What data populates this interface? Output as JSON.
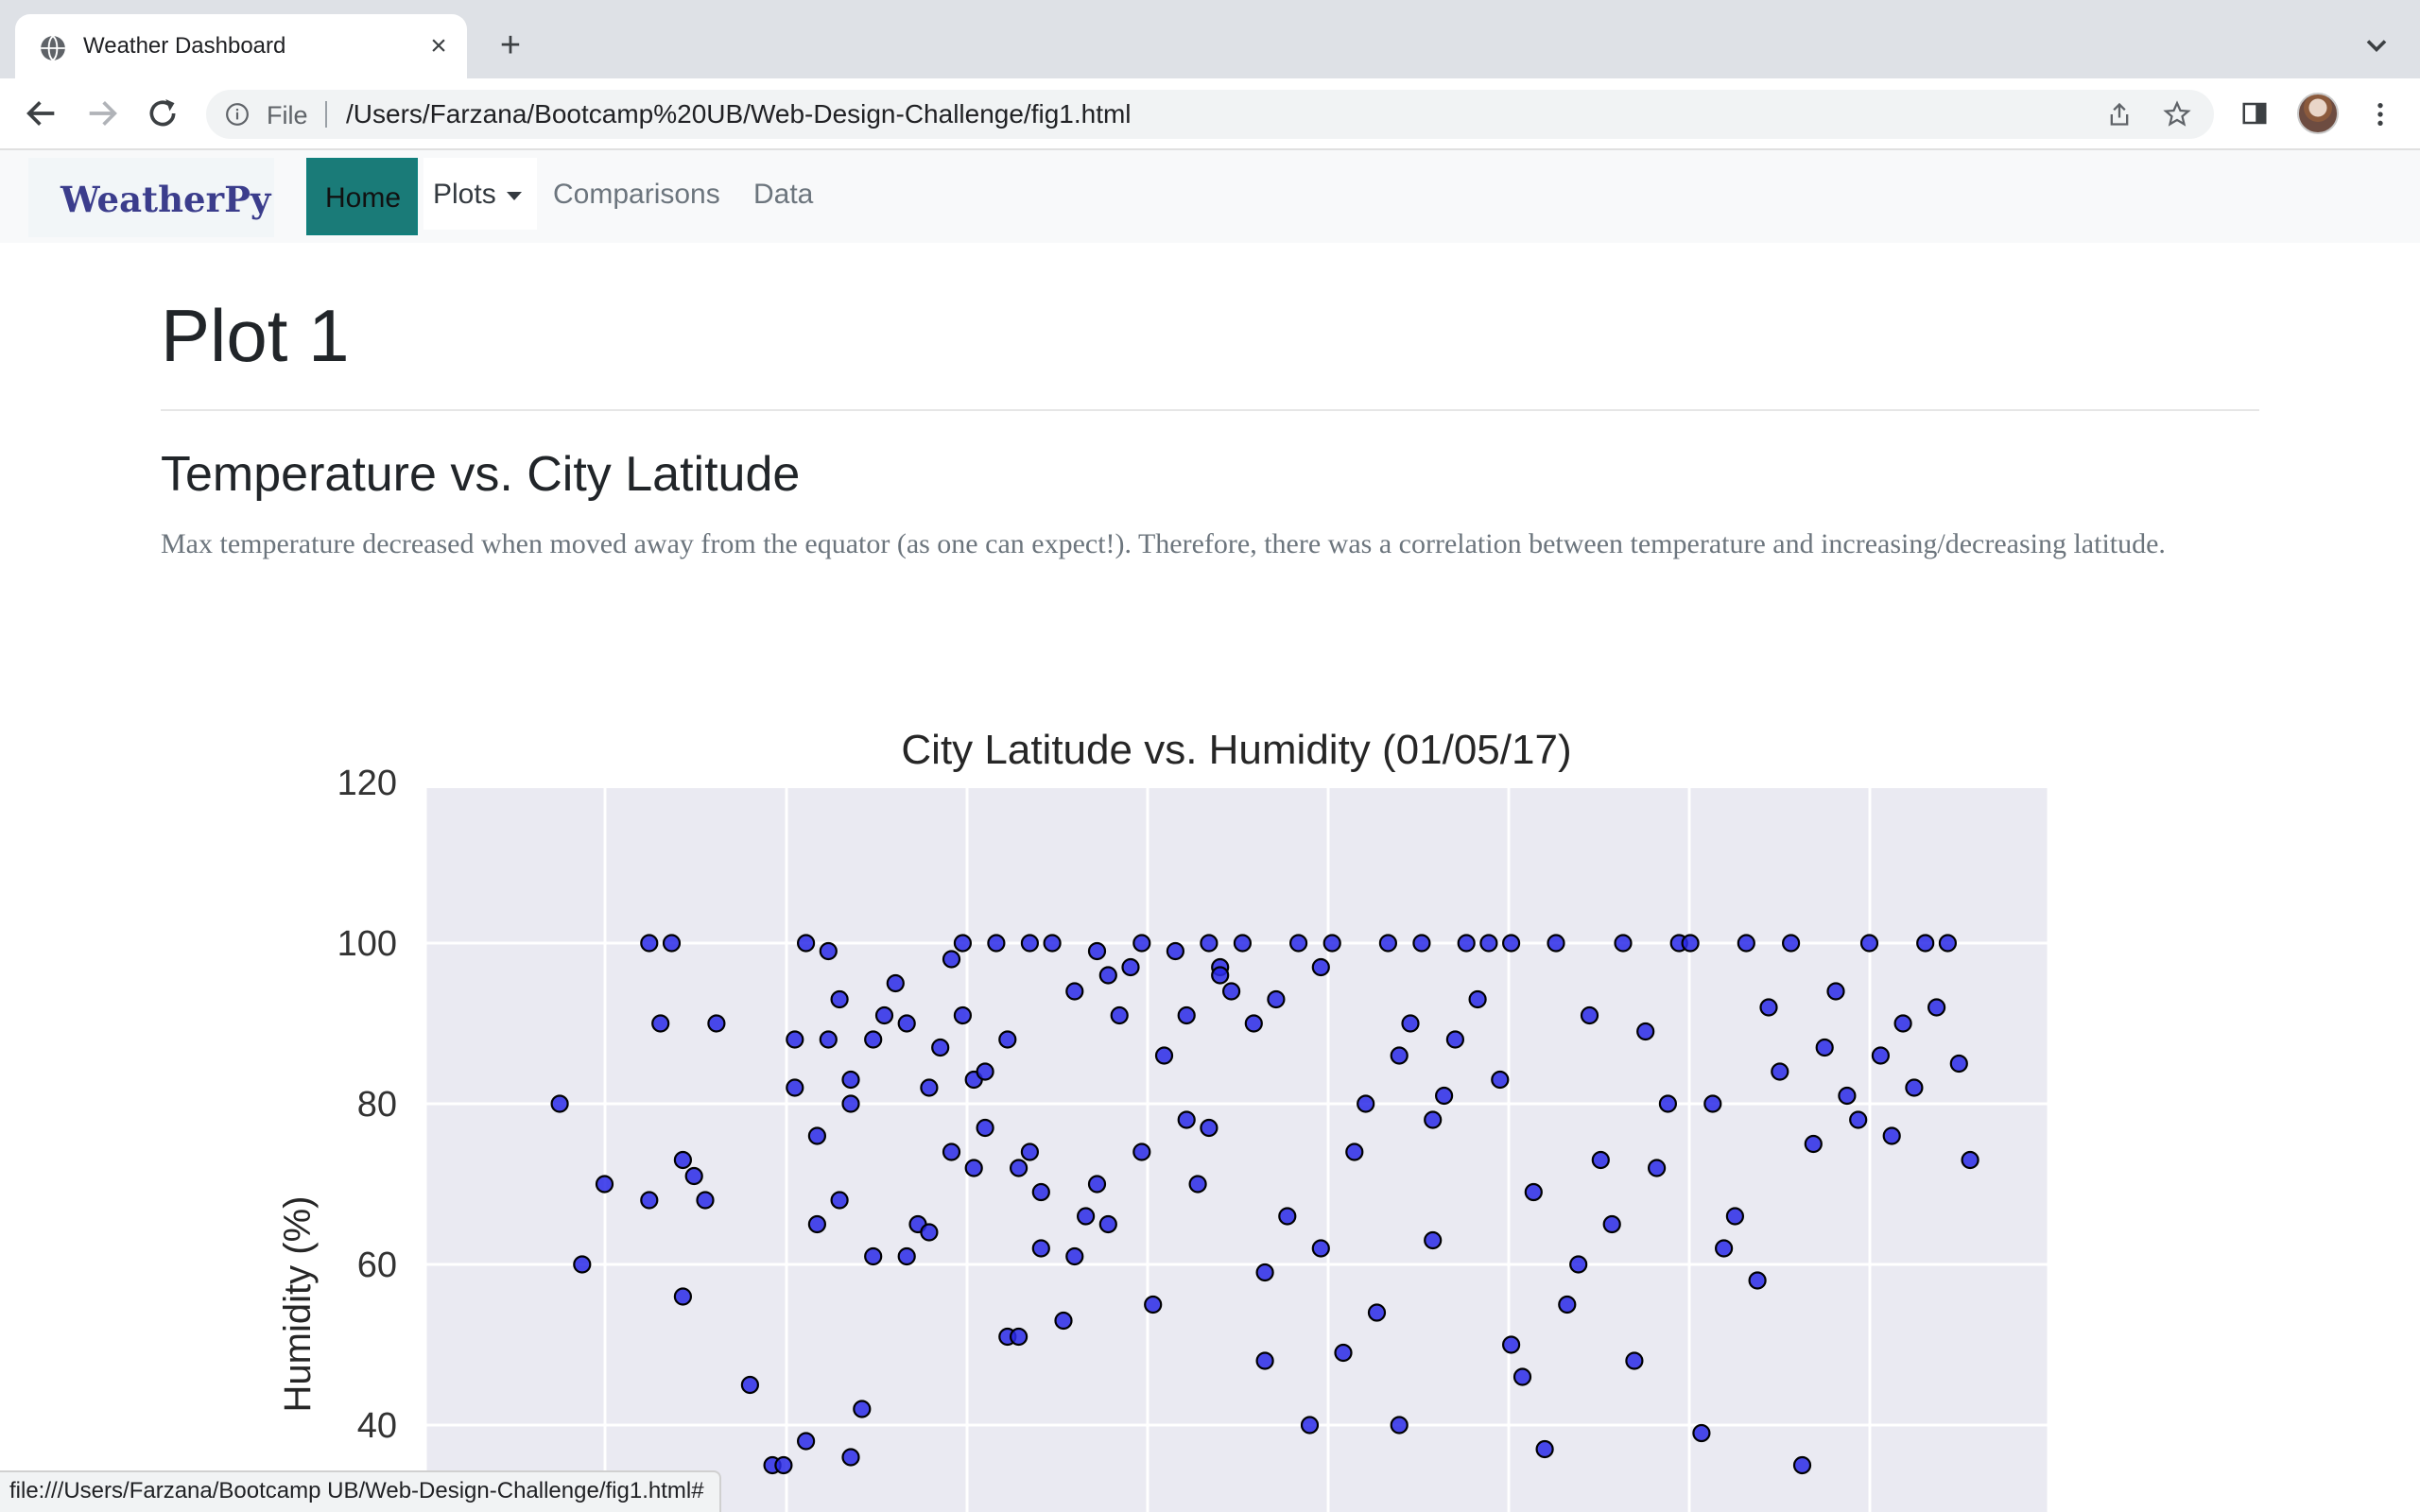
{
  "browser": {
    "tab_title": "Weather Dashboard",
    "url_scheme": "File",
    "url": "/Users/Farzana/Bootcamp%20UB/Web-Design-Challenge/fig1.html",
    "status_url": "file:///Users/Farzana/Bootcamp UB/Web-Design-Challenge/fig1.html#"
  },
  "navbar": {
    "brand": "WeatherPy",
    "items": [
      "Home",
      "Plots",
      "Comparisons",
      "Data"
    ],
    "active": "Home"
  },
  "page": {
    "title": "Plot 1",
    "section_title": "Temperature vs. City Latitude",
    "description": "Max temperature decreased when moved away from the equator (as one can expect!). Therefore, there was a correlation between temperature and increasing/decreasing latitude."
  },
  "chart_data": {
    "type": "scatter",
    "title": "City Latitude vs. Humidity (01/05/17)",
    "xlabel": "",
    "ylabel": "Humidity (%)",
    "ylim": [
      30,
      120
    ],
    "yticks": [
      40,
      60,
      80,
      100,
      120
    ],
    "grid": true,
    "style": "seaborn-darkgrid",
    "colors": {
      "point_fill": "#2a2ae8",
      "point_edge": "#000000",
      "background": "#eaeaf2",
      "grid": "#ffffff"
    },
    "series": [
      {
        "x": [
          -48,
          -46,
          -44,
          -40,
          -40,
          -39,
          -38,
          -37,
          -37,
          -36,
          -35,
          -34,
          -31,
          -29,
          -28,
          -27,
          -27,
          -26,
          -26,
          -25,
          -25,
          -24,
          -24,
          -23,
          -23,
          -22,
          -22,
          -22,
          -21,
          -20,
          -20,
          -19,
          -18,
          -17,
          -17,
          -16,
          -15,
          -15,
          -14,
          -13,
          -13,
          -12,
          -12,
          -11,
          -11,
          -10,
          -10,
          -9,
          -8,
          -8,
          -7,
          -7,
          -6,
          -6,
          -5,
          -5,
          -4,
          -3,
          -2,
          -2,
          -1,
          0,
          0,
          1,
          1,
          2,
          3,
          4,
          4,
          5,
          6,
          7,
          8,
          8,
          9,
          10,
          10,
          11,
          11,
          12,
          13,
          14,
          15,
          15,
          16,
          17,
          18,
          19,
          20,
          20,
          21,
          22,
          23,
          24,
          25,
          26,
          27,
          27,
          28,
          29,
          30,
          30,
          31,
          32,
          33,
          34,
          35,
          36,
          37,
          37,
          38,
          39,
          40,
          41,
          42,
          43,
          44,
          45,
          46,
          47,
          48,
          49,
          50,
          51,
          52,
          53,
          54,
          55,
          56,
          57,
          58,
          59,
          60,
          61,
          62,
          63,
          64,
          65,
          66,
          67,
          68,
          69,
          70,
          71,
          72,
          73,
          74,
          75,
          76,
          77,
          78
        ],
        "y": [
          80,
          60,
          70,
          100,
          68,
          90,
          100,
          56,
          73,
          71,
          68,
          90,
          45,
          35,
          35,
          88,
          82,
          100,
          38,
          76,
          65,
          88,
          99,
          68,
          93,
          80,
          36,
          83,
          42,
          61,
          88,
          91,
          95,
          90,
          61,
          65,
          82,
          64,
          87,
          98,
          74,
          100,
          91,
          72,
          83,
          77,
          84,
          100,
          51,
          88,
          51,
          72,
          74,
          100,
          62,
          69,
          100,
          53,
          61,
          94,
          66,
          99,
          70,
          65,
          96,
          91,
          97,
          74,
          100,
          55,
          86,
          99,
          91,
          78,
          70,
          100,
          77,
          97,
          96,
          94,
          100,
          90,
          59,
          48,
          93,
          66,
          100,
          40,
          62,
          97,
          100,
          49,
          74,
          80,
          54,
          100,
          86,
          40,
          90,
          100,
          63,
          78,
          81,
          88,
          100,
          93,
          100,
          83,
          100,
          50,
          46,
          69,
          37,
          100,
          55,
          60,
          91,
          73,
          65,
          100,
          48,
          89,
          72,
          80,
          100,
          100,
          39,
          80,
          62,
          66,
          100,
          58,
          92,
          84,
          100,
          35,
          75,
          87,
          94,
          81,
          78,
          100,
          86,
          76,
          90,
          82,
          100,
          92,
          100,
          85,
          73
        ]
      }
    ]
  }
}
